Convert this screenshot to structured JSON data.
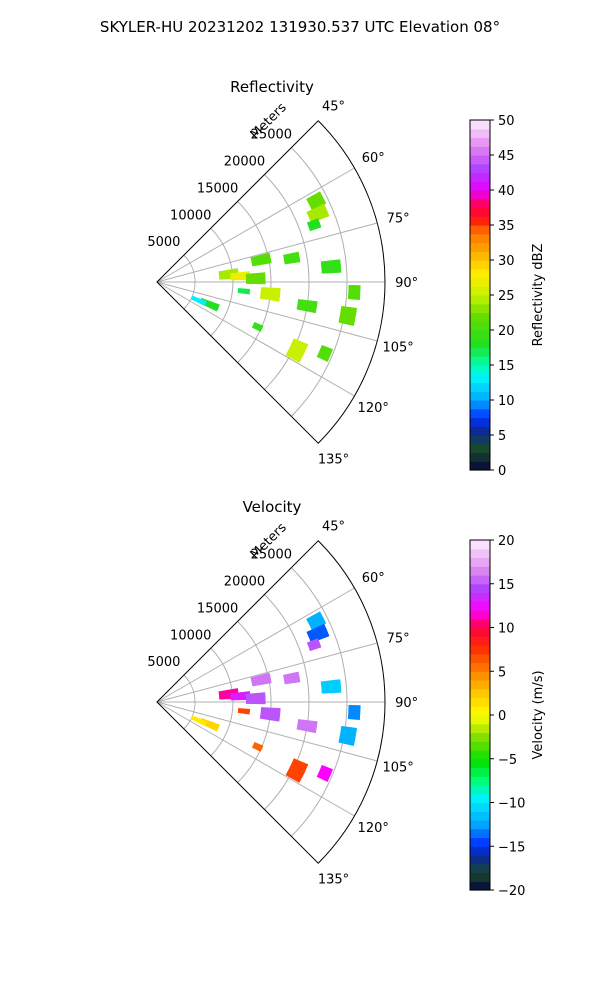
{
  "figure": {
    "title": "SKYLER-HU  20231202  131930.537 UTC Elevation 08°"
  },
  "chart_data": [
    {
      "type": "heatmap",
      "subtype": "polar-sector-radar",
      "title": "Reflectivity",
      "radial_axis_label": "Meters",
      "radial_ticks": [
        5000,
        10000,
        15000,
        20000,
        25000
      ],
      "radial_tick_labels": [
        "5000",
        "10000",
        "15000",
        "20000",
        "25000"
      ],
      "radial_range": [
        0,
        30000
      ],
      "azimuth_range_deg": [
        45,
        135
      ],
      "azimuth_ticks": [
        "45°",
        "60°",
        "75°",
        "90°",
        "105°",
        "120°",
        "135°"
      ],
      "grid": true,
      "colorbar": {
        "label": "Reflectivity dBZ",
        "range": [
          0,
          50
        ],
        "ticks": [
          "0",
          "5",
          "10",
          "15",
          "20",
          "25",
          "30",
          "35",
          "40",
          "45",
          "50"
        ],
        "placement": "right",
        "colormap": "pyart-homeyer-rainbow"
      },
      "echoes": [
        {
          "az": 63,
          "r": 23500,
          "daz": 4,
          "dr": 2000,
          "value": 22
        },
        {
          "az": 67,
          "r": 23000,
          "daz": 4,
          "dr": 2500,
          "value": 24
        },
        {
          "az": 70,
          "r": 22000,
          "daz": 3,
          "dr": 1500,
          "value": 18
        },
        {
          "az": 78,
          "r": 14000,
          "daz": 5,
          "dr": 2500,
          "value": 21
        },
        {
          "az": 80,
          "r": 18000,
          "daz": 4,
          "dr": 2000,
          "value": 20
        },
        {
          "az": 84,
          "r": 9500,
          "daz": 7,
          "dr": 2500,
          "value": 24
        },
        {
          "az": 85,
          "r": 23000,
          "daz": 4,
          "dr": 2500,
          "value": 19
        },
        {
          "az": 86,
          "r": 11000,
          "daz": 5,
          "dr": 2500,
          "value": 27
        },
        {
          "az": 88,
          "r": 13000,
          "daz": 6,
          "dr": 2500,
          "value": 22
        },
        {
          "az": 93,
          "r": 26000,
          "daz": 4,
          "dr": 1500,
          "value": 21
        },
        {
          "az": 96,
          "r": 11500,
          "daz": 3,
          "dr": 1500,
          "value": 17
        },
        {
          "az": 96,
          "r": 15000,
          "daz": 6,
          "dr": 2500,
          "value": 25
        },
        {
          "az": 99,
          "r": 20000,
          "daz": 4,
          "dr": 2500,
          "value": 20
        },
        {
          "az": 100,
          "r": 25500,
          "daz": 5,
          "dr": 2000,
          "value": 22
        },
        {
          "az": 113,
          "r": 7500,
          "daz": 6,
          "dr": 2500,
          "value": 18
        },
        {
          "az": 114,
          "r": 6000,
          "daz": 5,
          "dr": 2000,
          "value": 13
        },
        {
          "az": 114,
          "r": 14500,
          "daz": 3,
          "dr": 1200,
          "value": 19
        },
        {
          "az": 116,
          "r": 20500,
          "daz": 7,
          "dr": 2000,
          "value": 25
        },
        {
          "az": 113,
          "r": 24000,
          "daz": 4,
          "dr": 1500,
          "value": 21
        }
      ]
    },
    {
      "type": "heatmap",
      "subtype": "polar-sector-radar",
      "title": "Velocity",
      "radial_axis_label": "Meters",
      "radial_ticks": [
        5000,
        10000,
        15000,
        20000,
        25000
      ],
      "radial_tick_labels": [
        "5000",
        "10000",
        "15000",
        "20000",
        "25000"
      ],
      "radial_range": [
        0,
        30000
      ],
      "azimuth_range_deg": [
        45,
        135
      ],
      "azimuth_ticks": [
        "45°",
        "60°",
        "75°",
        "90°",
        "105°",
        "120°",
        "135°"
      ],
      "grid": true,
      "colorbar": {
        "label": "Velocity (m/s)",
        "range": [
          -20,
          20
        ],
        "ticks": [
          "−20",
          "−15",
          "−10",
          "−5",
          "0",
          "5",
          "10",
          "15",
          "20"
        ],
        "placement": "right",
        "colormap": "pyart-balance-rainbow"
      },
      "echoes": [
        {
          "az": 63,
          "r": 23500,
          "daz": 4,
          "dr": 2000,
          "value": -12
        },
        {
          "az": 67,
          "r": 23000,
          "daz": 4,
          "dr": 2500,
          "value": -14
        },
        {
          "az": 70,
          "r": 22000,
          "daz": 3,
          "dr": 1500,
          "value": 15
        },
        {
          "az": 78,
          "r": 14000,
          "daz": 5,
          "dr": 2500,
          "value": 16
        },
        {
          "az": 80,
          "r": 18000,
          "daz": 4,
          "dr": 2000,
          "value": 16
        },
        {
          "az": 84,
          "r": 9500,
          "daz": 7,
          "dr": 2500,
          "value": 11
        },
        {
          "az": 85,
          "r": 23000,
          "daz": 4,
          "dr": 2500,
          "value": -11
        },
        {
          "az": 86,
          "r": 11000,
          "daz": 5,
          "dr": 2500,
          "value": 13
        },
        {
          "az": 88,
          "r": 13000,
          "daz": 6,
          "dr": 2500,
          "value": 15
        },
        {
          "az": 93,
          "r": 26000,
          "daz": 4,
          "dr": 1500,
          "value": -13
        },
        {
          "az": 96,
          "r": 11500,
          "daz": 3,
          "dr": 1500,
          "value": 7
        },
        {
          "az": 96,
          "r": 15000,
          "daz": 6,
          "dr": 2500,
          "value": 15
        },
        {
          "az": 99,
          "r": 20000,
          "daz": 4,
          "dr": 2500,
          "value": 16
        },
        {
          "az": 100,
          "r": 25500,
          "daz": 5,
          "dr": 2000,
          "value": -12
        },
        {
          "az": 113,
          "r": 7500,
          "daz": 6,
          "dr": 2500,
          "value": 2
        },
        {
          "az": 114,
          "r": 6000,
          "daz": 5,
          "dr": 2000,
          "value": 1
        },
        {
          "az": 114,
          "r": 14500,
          "daz": 3,
          "dr": 1200,
          "value": 6
        },
        {
          "az": 116,
          "r": 20500,
          "daz": 7,
          "dr": 2000,
          "value": 7
        },
        {
          "az": 113,
          "r": 24000,
          "daz": 4,
          "dr": 1500,
          "value": 12
        }
      ]
    }
  ]
}
